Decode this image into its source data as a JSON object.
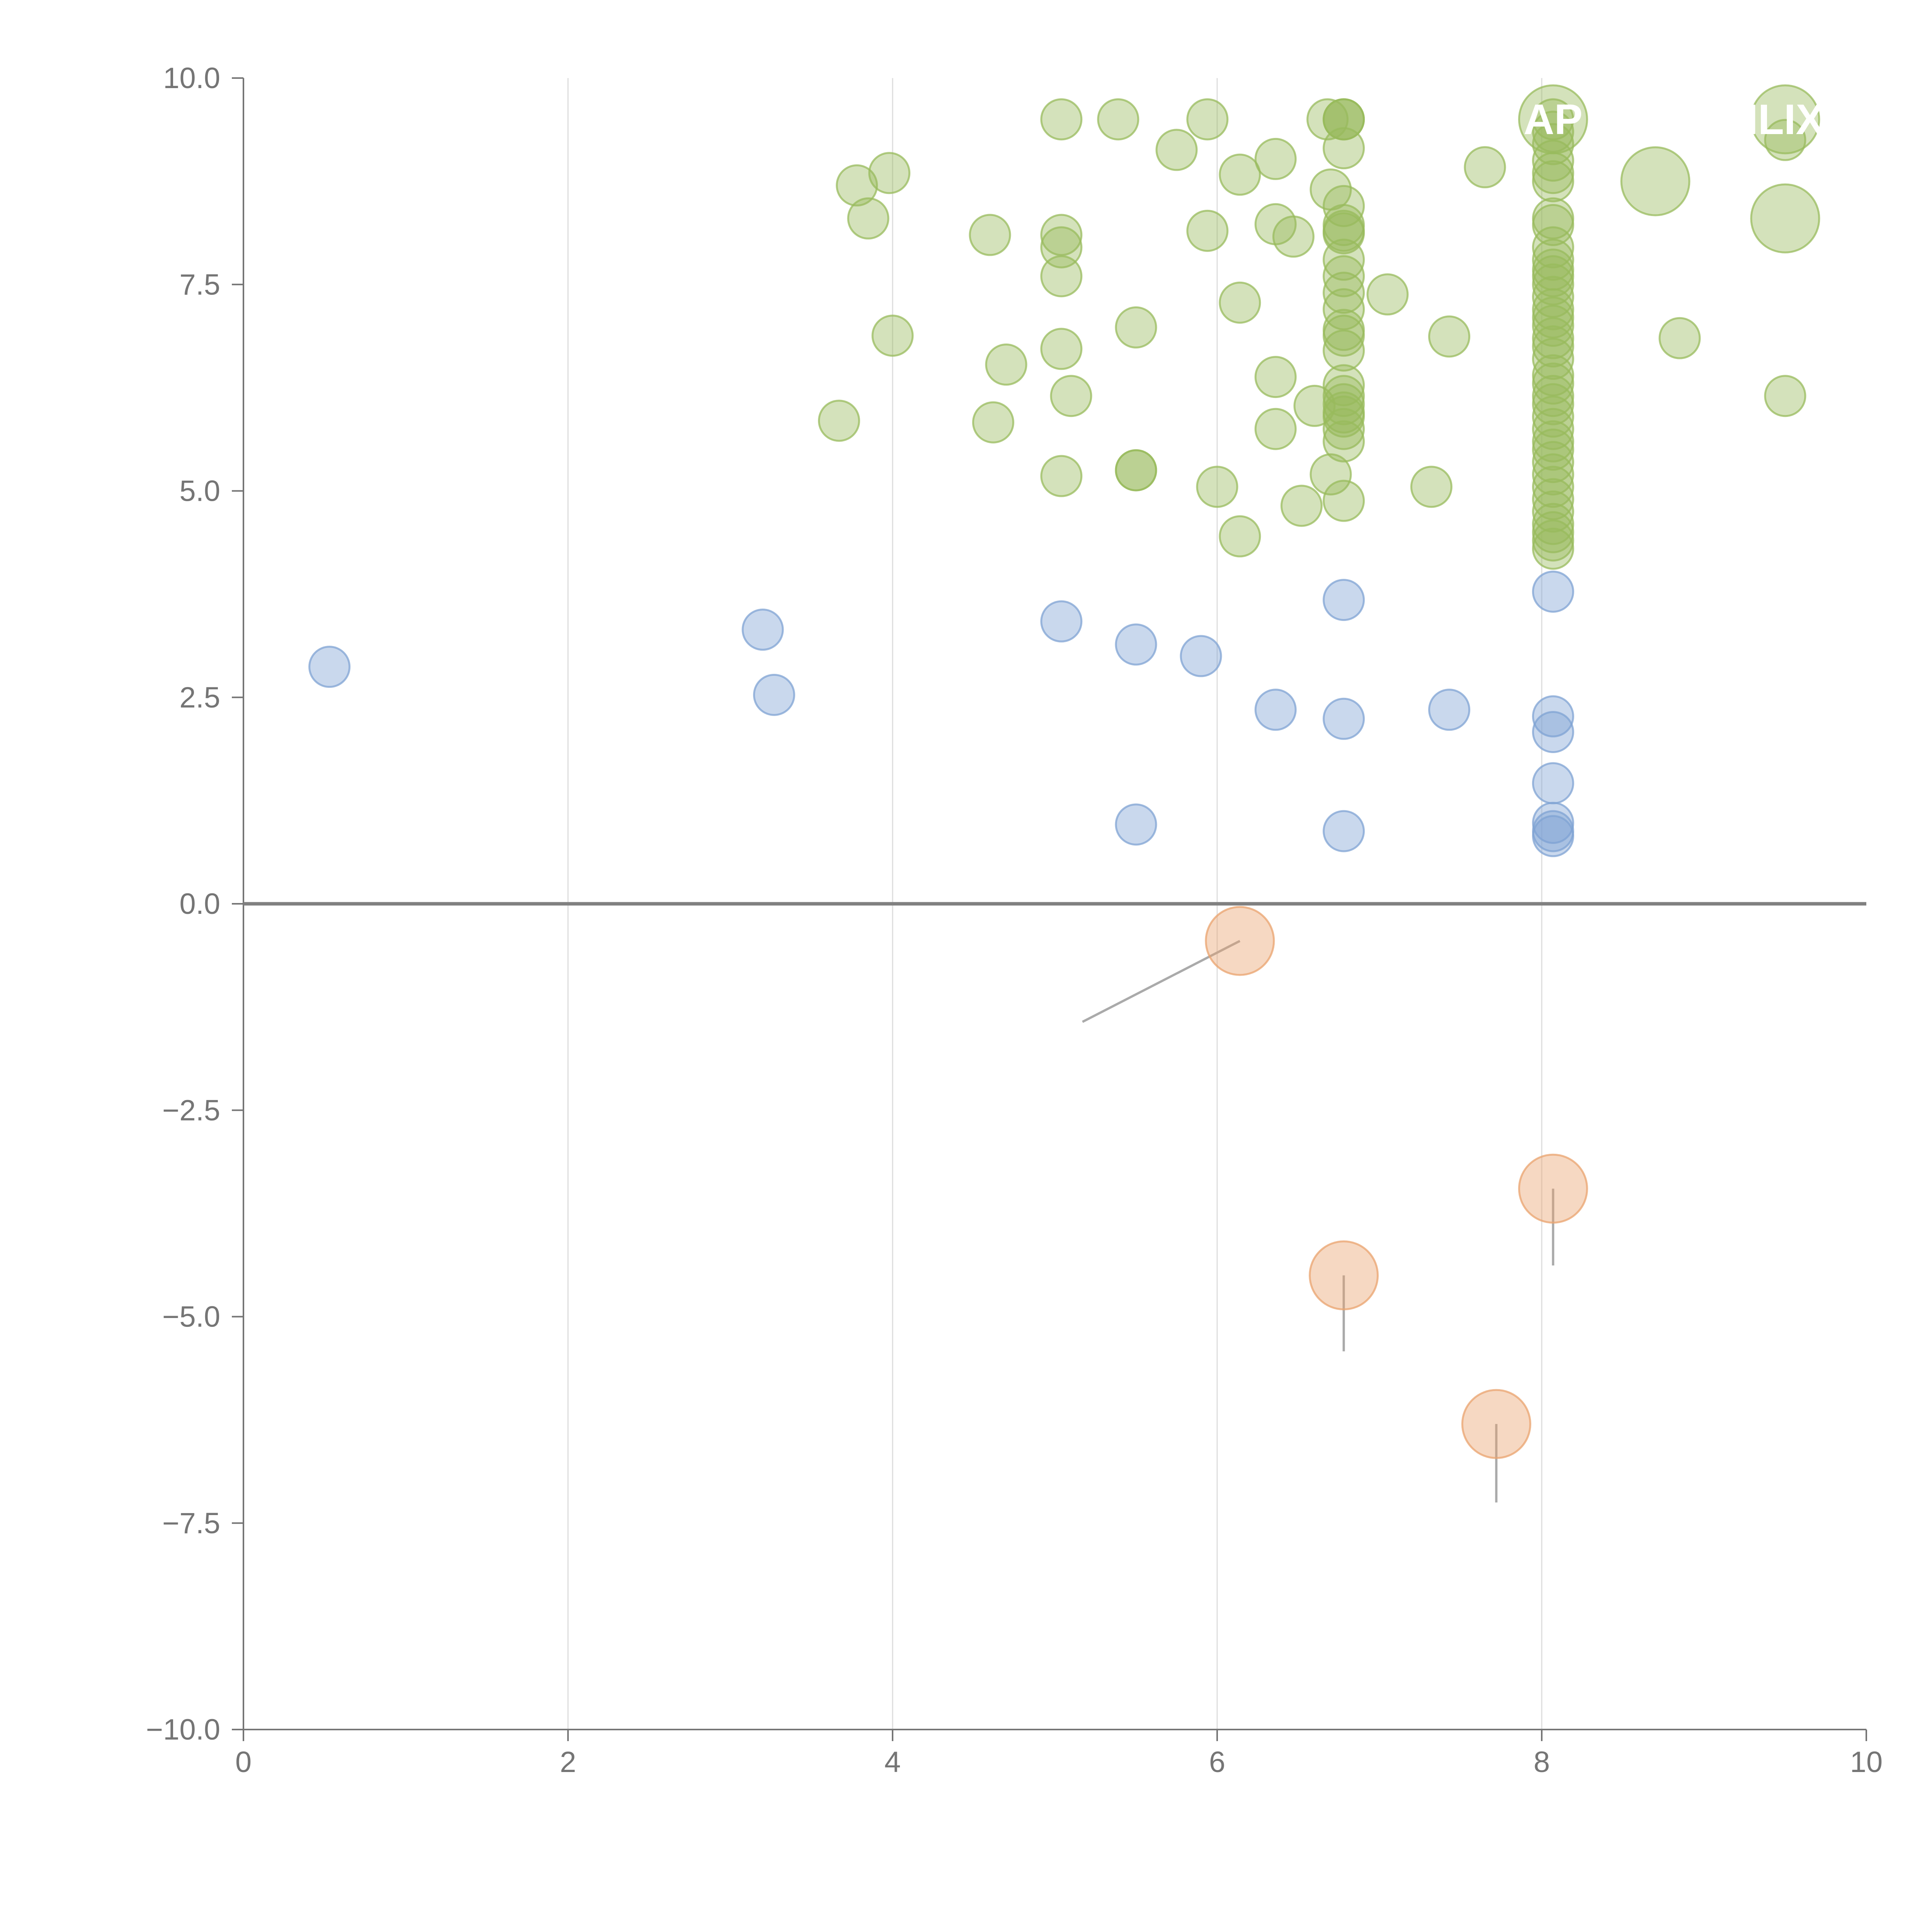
{
  "chart_data": {
    "type": "scatter",
    "title": "",
    "xlabel": "",
    "ylabel": "",
    "xlim": [
      0,
      10
    ],
    "ylim": [
      -10,
      10
    ],
    "x_ticks": [
      0,
      2,
      4,
      6,
      8,
      10
    ],
    "x_tick_labels": [
      "0",
      "2",
      "4",
      "6",
      "8",
      "10"
    ],
    "y_ticks": [
      -10,
      -7.5,
      -5,
      -2.5,
      0,
      2.5,
      5,
      7.5,
      10
    ],
    "y_tick_labels": [
      "−10.0",
      "−7.5",
      "−5.0",
      "−2.5",
      "0.0",
      "2.5",
      "5.0",
      "7.5",
      "10.0"
    ],
    "vertical_grid_at_x": [
      2,
      4,
      6,
      8
    ],
    "horizontal_grid": false,
    "zero_line": true,
    "legend": "none",
    "colors": {
      "positive_high": "#98BB5C",
      "positive_low": "#7FA3D3",
      "negative": "#E9A36E",
      "axis": "#757575",
      "grid": "#DDDDDD"
    },
    "series": [
      {
        "color": "#98BB5C",
        "points": [
          {
            "x": 3.67,
            "y": 5.85
          },
          {
            "x": 3.78,
            "y": 8.7
          },
          {
            "x": 3.85,
            "y": 8.3
          },
          {
            "x": 3.98,
            "y": 8.85
          },
          {
            "x": 4.0,
            "y": 6.88
          },
          {
            "x": 4.6,
            "y": 8.1
          },
          {
            "x": 4.62,
            "y": 5.83
          },
          {
            "x": 4.7,
            "y": 6.53
          },
          {
            "x": 5.04,
            "y": 9.5
          },
          {
            "x": 5.04,
            "y": 8.1
          },
          {
            "x": 5.04,
            "y": 7.95
          },
          {
            "x": 5.04,
            "y": 7.6
          },
          {
            "x": 5.04,
            "y": 6.72
          },
          {
            "x": 5.04,
            "y": 5.18
          },
          {
            "x": 5.1,
            "y": 6.15
          },
          {
            "x": 5.39,
            "y": 9.5
          },
          {
            "x": 5.5,
            "y": 6.98
          },
          {
            "x": 5.5,
            "y": 5.25
          },
          {
            "x": 5.5,
            "y": 5.25
          },
          {
            "x": 5.75,
            "y": 9.13
          },
          {
            "x": 5.94,
            "y": 9.5
          },
          {
            "x": 5.94,
            "y": 8.15
          },
          {
            "x": 6.0,
            "y": 5.05
          },
          {
            "x": 6.14,
            "y": 8.83
          },
          {
            "x": 6.14,
            "y": 7.28
          },
          {
            "x": 6.14,
            "y": 4.45
          },
          {
            "x": 6.36,
            "y": 9.02
          },
          {
            "x": 6.36,
            "y": 8.23
          },
          {
            "x": 6.36,
            "y": 6.38
          },
          {
            "x": 6.36,
            "y": 5.75
          },
          {
            "x": 6.47,
            "y": 8.08
          },
          {
            "x": 6.52,
            "y": 4.82
          },
          {
            "x": 6.6,
            "y": 6.03
          },
          {
            "x": 6.68,
            "y": 9.5
          },
          {
            "x": 6.7,
            "y": 8.65
          },
          {
            "x": 6.7,
            "y": 5.2
          },
          {
            "x": 6.78,
            "y": 9.5
          },
          {
            "x": 6.78,
            "y": 9.5
          },
          {
            "x": 6.78,
            "y": 9.5
          },
          {
            "x": 6.78,
            "y": 9.15
          },
          {
            "x": 6.78,
            "y": 8.45
          },
          {
            "x": 6.78,
            "y": 8.22
          },
          {
            "x": 6.78,
            "y": 8.15
          },
          {
            "x": 6.78,
            "y": 8.12
          },
          {
            "x": 6.78,
            "y": 7.8
          },
          {
            "x": 6.78,
            "y": 7.6
          },
          {
            "x": 6.78,
            "y": 7.4
          },
          {
            "x": 6.78,
            "y": 7.2
          },
          {
            "x": 6.78,
            "y": 6.95
          },
          {
            "x": 6.78,
            "y": 6.88
          },
          {
            "x": 6.78,
            "y": 6.7
          },
          {
            "x": 6.78,
            "y": 6.28
          },
          {
            "x": 6.78,
            "y": 6.15
          },
          {
            "x": 6.78,
            "y": 6.05
          },
          {
            "x": 6.78,
            "y": 5.95
          },
          {
            "x": 6.78,
            "y": 5.9
          },
          {
            "x": 6.78,
            "y": 5.75
          },
          {
            "x": 6.78,
            "y": 5.6
          },
          {
            "x": 6.78,
            "y": 4.88
          },
          {
            "x": 7.05,
            "y": 7.38
          },
          {
            "x": 7.32,
            "y": 5.05
          },
          {
            "x": 7.43,
            "y": 6.87
          },
          {
            "x": 7.65,
            "y": 8.92
          },
          {
            "x": 8.07,
            "y": 9.5
          },
          {
            "x": 8.07,
            "y": 9.35
          },
          {
            "x": 8.07,
            "y": 9.2
          },
          {
            "x": 8.07,
            "y": 9.0
          },
          {
            "x": 8.07,
            "y": 8.85
          },
          {
            "x": 8.07,
            "y": 8.75
          },
          {
            "x": 8.07,
            "y": 8.3
          },
          {
            "x": 8.07,
            "y": 8.22
          },
          {
            "x": 8.07,
            "y": 7.95
          },
          {
            "x": 8.07,
            "y": 7.8
          },
          {
            "x": 8.07,
            "y": 7.68
          },
          {
            "x": 8.07,
            "y": 7.6
          },
          {
            "x": 8.07,
            "y": 7.5
          },
          {
            "x": 8.07,
            "y": 7.35
          },
          {
            "x": 8.07,
            "y": 7.2
          },
          {
            "x": 8.07,
            "y": 7.1
          },
          {
            "x": 8.07,
            "y": 7.0
          },
          {
            "x": 8.07,
            "y": 6.85
          },
          {
            "x": 8.07,
            "y": 6.75
          },
          {
            "x": 8.07,
            "y": 6.6
          },
          {
            "x": 8.07,
            "y": 6.4
          },
          {
            "x": 8.07,
            "y": 6.3
          },
          {
            "x": 8.07,
            "y": 6.15
          },
          {
            "x": 8.07,
            "y": 6.05
          },
          {
            "x": 8.07,
            "y": 5.9
          },
          {
            "x": 8.07,
            "y": 5.75
          },
          {
            "x": 8.07,
            "y": 5.6
          },
          {
            "x": 8.07,
            "y": 5.5
          },
          {
            "x": 8.07,
            "y": 5.35
          },
          {
            "x": 8.07,
            "y": 5.2
          },
          {
            "x": 8.07,
            "y": 5.05
          },
          {
            "x": 8.07,
            "y": 4.9
          },
          {
            "x": 8.07,
            "y": 4.75
          },
          {
            "x": 8.07,
            "y": 4.6
          },
          {
            "x": 8.07,
            "y": 4.5
          },
          {
            "x": 8.07,
            "y": 4.4
          },
          {
            "x": 8.07,
            "y": 4.3
          },
          {
            "x": 8.85,
            "y": 6.85
          },
          {
            "x": 9.5,
            "y": 9.25
          },
          {
            "x": 9.5,
            "y": 6.15
          }
        ]
      },
      {
        "color": "#7FA3D3",
        "points": [
          {
            "x": 0.53,
            "y": 2.87
          },
          {
            "x": 3.2,
            "y": 3.32
          },
          {
            "x": 3.27,
            "y": 2.53
          },
          {
            "x": 5.04,
            "y": 3.42
          },
          {
            "x": 5.5,
            "y": 3.14
          },
          {
            "x": 5.5,
            "y": 0.96
          },
          {
            "x": 5.9,
            "y": 3.0
          },
          {
            "x": 6.36,
            "y": 2.35
          },
          {
            "x": 6.78,
            "y": 3.68
          },
          {
            "x": 6.78,
            "y": 2.24
          },
          {
            "x": 6.78,
            "y": 0.88
          },
          {
            "x": 7.43,
            "y": 2.35
          },
          {
            "x": 8.07,
            "y": 3.78
          },
          {
            "x": 8.07,
            "y": 2.27
          },
          {
            "x": 8.07,
            "y": 2.08
          },
          {
            "x": 8.07,
            "y": 1.46
          },
          {
            "x": 8.07,
            "y": 0.98
          },
          {
            "x": 8.07,
            "y": 0.88
          },
          {
            "x": 8.07,
            "y": 0.82
          }
        ]
      },
      {
        "color": "#98BB5C",
        "size": "large",
        "points": [
          {
            "x": 8.07,
            "y": 9.5,
            "label": "AP"
          },
          {
            "x": 8.7,
            "y": 8.75
          },
          {
            "x": 9.5,
            "y": 9.5,
            "label": "ILIX"
          },
          {
            "x": 9.5,
            "y": 8.3
          }
        ]
      },
      {
        "color": "#E9A36E",
        "size": "large",
        "points": [
          {
            "x": 6.14,
            "y": -0.45
          },
          {
            "x": 6.78,
            "y": -4.5
          },
          {
            "x": 7.72,
            "y": -6.3
          },
          {
            "x": 8.07,
            "y": -3.45
          }
        ]
      }
    ]
  }
}
